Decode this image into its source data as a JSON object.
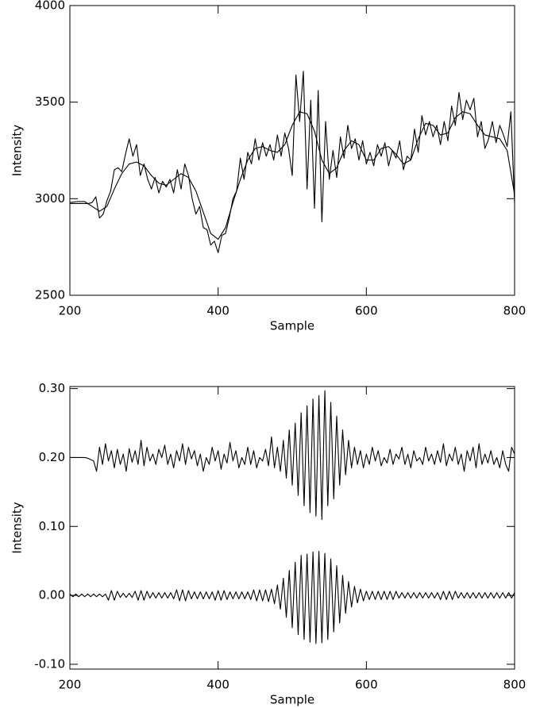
{
  "chart_data": [
    {
      "type": "line",
      "xlabel": "Sample",
      "ylabel": "Intensity",
      "xlim": [
        200,
        800
      ],
      "ylim": [
        2500,
        4000
      ],
      "xticks": [
        200,
        400,
        600,
        800
      ],
      "yticks": [
        2500,
        3000,
        3500,
        4000
      ],
      "x": [
        200,
        205,
        210,
        215,
        220,
        225,
        230,
        235,
        240,
        245,
        250,
        255,
        260,
        265,
        270,
        275,
        280,
        285,
        290,
        295,
        300,
        305,
        310,
        315,
        320,
        325,
        330,
        335,
        340,
        345,
        350,
        355,
        360,
        365,
        370,
        375,
        380,
        385,
        390,
        395,
        400,
        405,
        410,
        415,
        420,
        425,
        430,
        435,
        440,
        445,
        450,
        455,
        460,
        465,
        470,
        475,
        480,
        485,
        490,
        495,
        500,
        505,
        510,
        515,
        520,
        525,
        530,
        535,
        540,
        545,
        550,
        555,
        560,
        565,
        570,
        575,
        580,
        585,
        590,
        595,
        600,
        605,
        610,
        615,
        620,
        625,
        630,
        635,
        640,
        645,
        650,
        655,
        660,
        665,
        670,
        675,
        680,
        685,
        690,
        695,
        700,
        705,
        710,
        715,
        720,
        725,
        730,
        735,
        740,
        745,
        750,
        755,
        760,
        765,
        770,
        775,
        780,
        785,
        790,
        795,
        800
      ],
      "series": [
        {
          "color": "#000000",
          "values": [
            2975,
            2975,
            2975,
            2975,
            2975,
            2975,
            2980,
            3010,
            2900,
            2920,
            2990,
            3040,
            3150,
            3160,
            3140,
            3230,
            3310,
            3220,
            3280,
            3120,
            3180,
            3100,
            3050,
            3110,
            3030,
            3090,
            3060,
            3100,
            3030,
            3150,
            3050,
            3180,
            3120,
            3000,
            2920,
            2960,
            2850,
            2840,
            2760,
            2780,
            2720,
            2810,
            2820,
            2900,
            3000,
            3040,
            3210,
            3100,
            3240,
            3180,
            3310,
            3200,
            3290,
            3220,
            3280,
            3200,
            3330,
            3220,
            3340,
            3260,
            3120,
            3640,
            3400,
            3660,
            3050,
            3510,
            2950,
            3560,
            2880,
            3400,
            3100,
            3250,
            3110,
            3320,
            3210,
            3380,
            3260,
            3310,
            3200,
            3300,
            3180,
            3240,
            3170,
            3280,
            3220,
            3290,
            3170,
            3250,
            3210,
            3300,
            3150,
            3220,
            3200,
            3360,
            3240,
            3430,
            3330,
            3400,
            3320,
            3380,
            3280,
            3400,
            3300,
            3480,
            3380,
            3550,
            3410,
            3510,
            3460,
            3520,
            3320,
            3400,
            3260,
            3310,
            3400,
            3290,
            3380,
            3330,
            3270,
            3450,
            2975
          ]
        },
        {
          "color": "#000000",
          "x": [
            200,
            210,
            220,
            230,
            240,
            250,
            260,
            270,
            280,
            290,
            300,
            310,
            320,
            330,
            340,
            350,
            360,
            370,
            380,
            390,
            400,
            410,
            420,
            430,
            440,
            450,
            460,
            470,
            480,
            490,
            500,
            510,
            520,
            530,
            540,
            550,
            560,
            570,
            580,
            590,
            600,
            610,
            620,
            630,
            640,
            650,
            660,
            670,
            680,
            690,
            700,
            710,
            720,
            730,
            740,
            750,
            760,
            770,
            780,
            790,
            800
          ],
          "values": [
            2980,
            2985,
            2985,
            2960,
            2935,
            2960,
            3050,
            3130,
            3180,
            3190,
            3170,
            3120,
            3080,
            3070,
            3100,
            3130,
            3110,
            3040,
            2930,
            2820,
            2790,
            2850,
            2980,
            3100,
            3200,
            3260,
            3270,
            3250,
            3240,
            3280,
            3380,
            3450,
            3440,
            3350,
            3200,
            3130,
            3160,
            3250,
            3300,
            3280,
            3200,
            3200,
            3260,
            3270,
            3230,
            3180,
            3200,
            3310,
            3390,
            3380,
            3330,
            3340,
            3420,
            3450,
            3440,
            3380,
            3330,
            3320,
            3310,
            3250,
            3020
          ]
        }
      ]
    },
    {
      "type": "line",
      "xlabel": "Sample",
      "ylabel": "Intensity",
      "xlim": [
        200,
        800
      ],
      "ylim": [
        -0.107,
        0.303
      ],
      "xticks": [
        200,
        400,
        600,
        800
      ],
      "yticks": [
        {
          "value": -0.1,
          "label": "-0.10"
        },
        {
          "value": 0,
          "label": "0.00"
        },
        {
          "value": 0.1,
          "label": "0.10"
        },
        {
          "value": 0.2,
          "label": "0.20"
        },
        {
          "value": 0.3,
          "label": "0.30"
        }
      ],
      "x": [
        200,
        204,
        208,
        212,
        216,
        220,
        224,
        228,
        232,
        236,
        240,
        244,
        248,
        252,
        256,
        260,
        264,
        268,
        272,
        276,
        280,
        284,
        288,
        292,
        296,
        300,
        304,
        308,
        312,
        316,
        320,
        324,
        328,
        332,
        336,
        340,
        344,
        348,
        352,
        356,
        360,
        364,
        368,
        372,
        376,
        380,
        384,
        388,
        392,
        396,
        400,
        404,
        408,
        412,
        416,
        420,
        424,
        428,
        432,
        436,
        440,
        444,
        448,
        452,
        456,
        460,
        464,
        468,
        472,
        476,
        480,
        484,
        488,
        492,
        496,
        500,
        504,
        508,
        512,
        516,
        520,
        524,
        528,
        532,
        536,
        540,
        544,
        548,
        552,
        556,
        560,
        564,
        568,
        572,
        576,
        580,
        584,
        588,
        592,
        596,
        600,
        604,
        608,
        612,
        616,
        620,
        624,
        628,
        632,
        636,
        640,
        644,
        648,
        652,
        656,
        660,
        664,
        668,
        672,
        676,
        680,
        684,
        688,
        692,
        696,
        700,
        704,
        708,
        712,
        716,
        720,
        724,
        728,
        732,
        736,
        740,
        744,
        748,
        752,
        756,
        760,
        764,
        768,
        772,
        776,
        780,
        784,
        788,
        792,
        796,
        800
      ],
      "series": [
        {
          "color": "#000000",
          "values": [
            0.2,
            0.2,
            0.2,
            0.2,
            0.2,
            0.2,
            0.199,
            0.197,
            0.195,
            0.18,
            0.215,
            0.19,
            0.22,
            0.195,
            0.21,
            0.185,
            0.212,
            0.19,
            0.205,
            0.18,
            0.213,
            0.193,
            0.21,
            0.19,
            0.225,
            0.188,
            0.215,
            0.195,
            0.205,
            0.19,
            0.212,
            0.2,
            0.218,
            0.19,
            0.205,
            0.185,
            0.21,
            0.195,
            0.22,
            0.19,
            0.215,
            0.198,
            0.21,
            0.188,
            0.205,
            0.18,
            0.2,
            0.19,
            0.215,
            0.195,
            0.21,
            0.183,
            0.205,
            0.192,
            0.222,
            0.195,
            0.21,
            0.185,
            0.2,
            0.19,
            0.215,
            0.19,
            0.21,
            0.185,
            0.2,
            0.195,
            0.212,
            0.188,
            0.23,
            0.185,
            0.215,
            0.18,
            0.225,
            0.17,
            0.24,
            0.16,
            0.25,
            0.145,
            0.265,
            0.13,
            0.275,
            0.12,
            0.285,
            0.115,
            0.29,
            0.11,
            0.297,
            0.13,
            0.28,
            0.14,
            0.26,
            0.16,
            0.24,
            0.175,
            0.225,
            0.185,
            0.215,
            0.19,
            0.21,
            0.185,
            0.205,
            0.19,
            0.215,
            0.195,
            0.21,
            0.188,
            0.2,
            0.192,
            0.212,
            0.19,
            0.205,
            0.198,
            0.215,
            0.19,
            0.205,
            0.185,
            0.21,
            0.195,
            0.2,
            0.19,
            0.215,
            0.195,
            0.205,
            0.19,
            0.21,
            0.193,
            0.22,
            0.188,
            0.205,
            0.195,
            0.215,
            0.19,
            0.205,
            0.18,
            0.21,
            0.195,
            0.215,
            0.185,
            0.22,
            0.19,
            0.205,
            0.192,
            0.21,
            0.19,
            0.2,
            0.185,
            0.21,
            0.19,
            0.18,
            0.215,
            0.205
          ]
        },
        {
          "color": "#000000",
          "values": [
            0.002,
            -0.002,
            0.002,
            -0.002,
            0.002,
            -0.002,
            0.002,
            -0.002,
            0.002,
            -0.002,
            0.002,
            -0.002,
            0.002,
            -0.007,
            0.007,
            -0.007,
            0.006,
            -0.003,
            0.003,
            -0.003,
            0.003,
            -0.003,
            0.006,
            -0.007,
            0.007,
            -0.007,
            0.006,
            -0.004,
            0.004,
            -0.004,
            0.004,
            -0.004,
            0.004,
            -0.004,
            0.004,
            -0.005,
            0.008,
            -0.008,
            0.008,
            -0.008,
            0.007,
            -0.005,
            0.005,
            -0.005,
            0.005,
            -0.005,
            0.005,
            -0.005,
            0.005,
            -0.007,
            0.007,
            -0.007,
            0.007,
            -0.006,
            0.005,
            -0.005,
            0.005,
            -0.005,
            0.005,
            -0.005,
            0.005,
            -0.006,
            0.008,
            -0.008,
            0.008,
            -0.008,
            0.008,
            -0.009,
            0.009,
            -0.012,
            0.015,
            -0.02,
            0.025,
            -0.032,
            0.036,
            -0.047,
            0.048,
            -0.057,
            0.058,
            -0.064,
            0.06,
            -0.068,
            0.063,
            -0.07,
            0.064,
            -0.069,
            0.061,
            -0.064,
            0.053,
            -0.053,
            0.043,
            -0.04,
            0.029,
            -0.026,
            0.02,
            -0.017,
            0.013,
            -0.011,
            0.009,
            -0.008,
            0.006,
            -0.006,
            0.006,
            -0.006,
            0.006,
            -0.006,
            0.006,
            -0.006,
            0.006,
            -0.006,
            0.006,
            -0.004,
            0.004,
            -0.004,
            0.004,
            -0.004,
            0.004,
            -0.004,
            0.004,
            -0.004,
            0.004,
            -0.004,
            0.004,
            -0.004,
            0.004,
            -0.006,
            0.006,
            -0.006,
            0.006,
            -0.006,
            0.006,
            -0.004,
            0.004,
            -0.004,
            0.004,
            -0.004,
            0.004,
            -0.004,
            0.004,
            -0.004,
            0.004,
            -0.004,
            0.004,
            -0.004,
            0.004,
            -0.004,
            0.004,
            -0.004,
            0.004,
            -0.004,
            0.004
          ]
        }
      ]
    }
  ]
}
